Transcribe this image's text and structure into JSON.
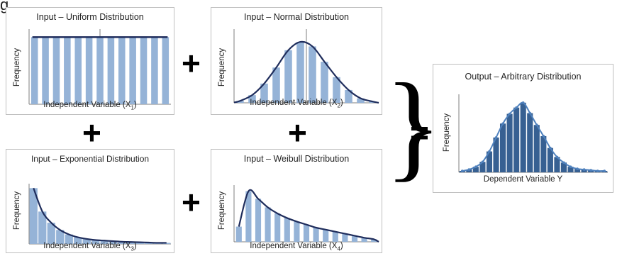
{
  "header_fragment": "g",
  "panels": {
    "uniform": {
      "title": "Input – Uniform  Distribution",
      "ylabel": "Frequency",
      "xlabel": "Independent Variable (X",
      "xsub": "1",
      "xclose": ")"
    },
    "normal": {
      "title": "Input – Normal  Distribution",
      "ylabel": "Frequency",
      "xlabel": "Independent Variable (X",
      "xsub": "2",
      "xclose": ")"
    },
    "exponential": {
      "title": "Input – Exponential Distribution",
      "ylabel": "Frequency",
      "xlabel": "Independent Variable (X",
      "xsub": "3",
      "xclose": ")"
    },
    "weibull": {
      "title": "Input –  Weibull  Distribution",
      "ylabel": "Frequency",
      "xlabel": "Independent Variable (X",
      "xsub": "4",
      "xclose": ")"
    },
    "output": {
      "title": "Output – Arbitrary Distribution",
      "ylabel": "Frequency",
      "xlabel": "Dependent Variable Y"
    }
  },
  "operators": {
    "plus": "+",
    "equals": "=",
    "brace": "}"
  },
  "colors": {
    "bar_light": "#95b3d7",
    "bar_dark": "#376092",
    "curve": "#1f2d5c",
    "output_curve": "#4f81bd"
  },
  "chart_data": [
    {
      "type": "bar",
      "name": "uniform",
      "values": [
        1,
        1,
        1,
        1,
        1,
        1,
        1,
        1,
        1,
        1,
        1,
        1,
        1
      ],
      "ylim": [
        0,
        1.12
      ]
    },
    {
      "type": "bar",
      "name": "normal",
      "values": [
        0.03,
        0.12,
        0.3,
        0.55,
        0.82,
        0.95,
        0.88,
        0.64,
        0.4,
        0.2,
        0.07,
        0.02
      ],
      "ylim": [
        0,
        1.15
      ]
    },
    {
      "type": "bar",
      "name": "exponential",
      "values": [
        1,
        0.58,
        0.38,
        0.25,
        0.17,
        0.12,
        0.09,
        0.07,
        0.06,
        0.05,
        0.04,
        0.035,
        0.03,
        0.025,
        0.02,
        0.02
      ],
      "ylim": [
        0,
        1.08
      ]
    },
    {
      "type": "bar",
      "name": "weibull",
      "values": [
        0.3,
        1,
        0.85,
        0.68,
        0.56,
        0.47,
        0.4,
        0.34,
        0.28,
        0.24,
        0.2,
        0.16,
        0.12,
        0.08,
        0.05
      ],
      "ylim": [
        0,
        1.12
      ]
    },
    {
      "type": "bar",
      "name": "output",
      "values": [
        0.02,
        0.04,
        0.08,
        0.15,
        0.3,
        0.5,
        0.7,
        0.84,
        0.93,
        1.0,
        0.85,
        0.68,
        0.52,
        0.35,
        0.22,
        0.14,
        0.08,
        0.05,
        0.04,
        0.03,
        0.02,
        0.02
      ],
      "ylim": [
        0,
        1.12
      ]
    }
  ]
}
